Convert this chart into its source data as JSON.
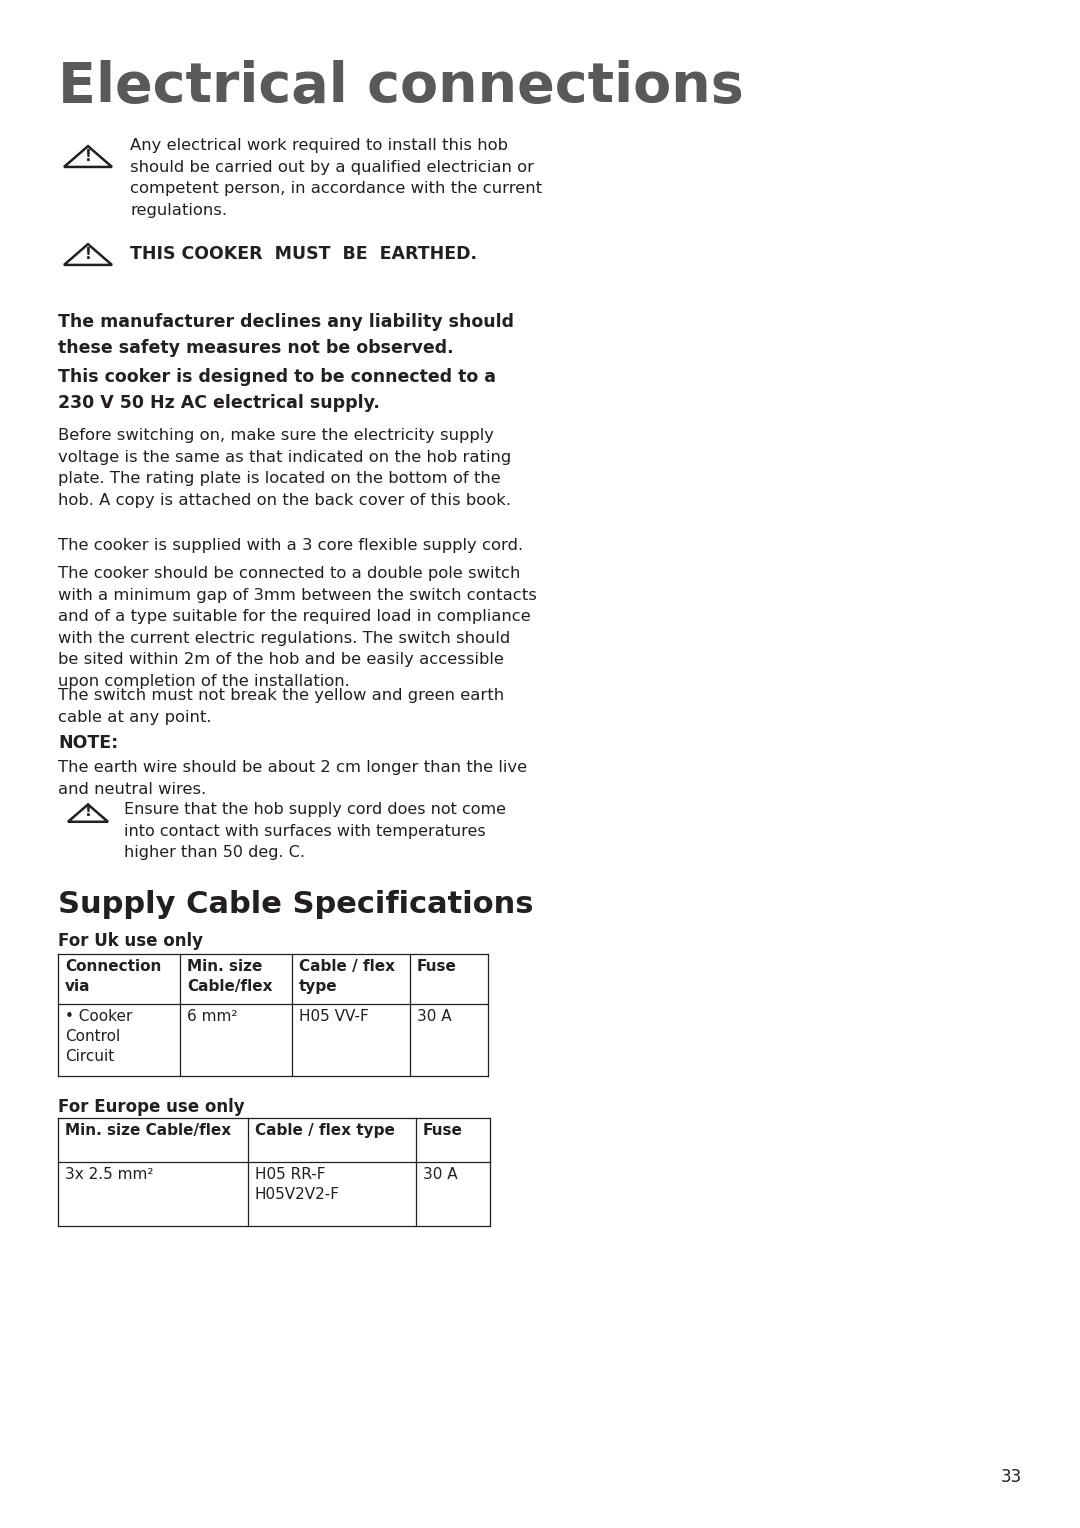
{
  "title": "Electrical connections",
  "bg_color": "#ffffff",
  "text_color": "#231f20",
  "title_color": "#595959",
  "page_number": "33",
  "warning1_text": "Any electrical work required to install this hob\nshould be carried out by a qualified electrician or\ncompetent person, in accordance with the current\nregulations.",
  "warning2_text": "THIS COOKER  MUST  BE  EARTHED.",
  "bold_text1": "The manufacturer declines any liability should\nthese safety measures not be observed.",
  "bold_text2": "This cooker is designed to be connected to a\n230 V 50 Hz AC electrical supply.",
  "para1": "Before switching on, make sure the electricity supply\nvoltage is the same as that indicated on the hob rating\nplate. The rating plate is located on the bottom of the\nhob. A copy is attached on the back cover of this book.",
  "para2": "The cooker is supplied with a 3 core flexible supply cord.",
  "para3": "The cooker should be connected to a double pole switch\nwith a minimum gap of 3mm between the switch contacts\nand of a type suitable for the required load in compliance\nwith the current electric regulations. The switch should\nbe sited within 2m of the hob and be easily accessible\nupon completion of the installation.",
  "para4": "The switch must not break the yellow and green earth\ncable at any point.",
  "note_label": "NOTE:",
  "note_text": "The earth wire should be about 2 cm longer than the live\nand neutral wires.",
  "warning3_text": "Ensure that the hob supply cord does not come\ninto contact with surfaces with temperatures\nhigher than 50 deg. C.",
  "section2_title": "Supply Cable Specifications",
  "uk_label": "For Uk use only",
  "uk_headers": [
    "Connection\nvia",
    "Min. size\nCable/flex",
    "Cable / flex\ntype",
    "Fuse"
  ],
  "uk_row": [
    "• Cooker\nControl\nCircuit",
    "6 mm²",
    "H05 VV-F",
    "30 A"
  ],
  "eu_label": "For Europe use only",
  "eu_headers": [
    "Min. size Cable/flex",
    "Cable / flex type",
    "Fuse"
  ],
  "eu_row": [
    "3x 2.5 mm²",
    "H05 RR-F\nH05V2V2-F",
    "30 A"
  ]
}
